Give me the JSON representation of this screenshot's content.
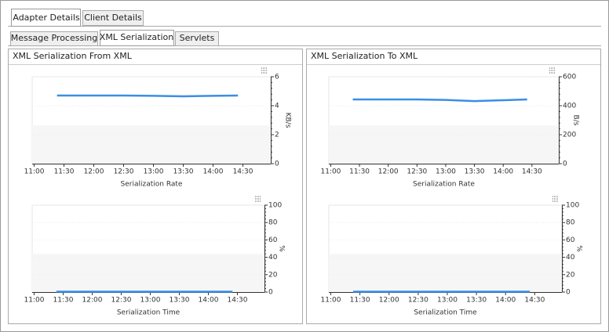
{
  "tabs": [
    "Adapter Details",
    "Client Details"
  ],
  "subtabs": [
    "Message Processing",
    "XML Serialization",
    "Servlets"
  ],
  "panels": [
    {
      "title": "XML Serialization From XML",
      "charts": [
        {
          "type": "line",
          "xlabel": "Serialization Rate",
          "ylabel": "KB/s",
          "color": "#3a8ee6",
          "x": [
            683,
            720,
            750,
            780,
            810,
            840,
            865
          ],
          "values": [
            4.7,
            4.7,
            4.7,
            4.68,
            4.65,
            4.68,
            4.7
          ],
          "xlim": [
            658,
            898
          ],
          "xticks": [
            {
              "value": 660,
              "label": "11:00"
            },
            {
              "value": 690,
              "label": "11:30"
            },
            {
              "value": 720,
              "label": "12:00"
            },
            {
              "value": 750,
              "label": "12:30"
            },
            {
              "value": 780,
              "label": "13:00"
            },
            {
              "value": 810,
              "label": "13:30"
            },
            {
              "value": 840,
              "label": "14:00"
            },
            {
              "value": 870,
              "label": "14:30"
            }
          ],
          "ylim": [
            0,
            6
          ],
          "yticks": [
            0,
            2,
            4,
            6
          ],
          "grid": true
        },
        {
          "type": "line",
          "xlabel": "Serialization Time",
          "ylabel": "%",
          "color": "#3a8ee6",
          "x": [
            683,
            720,
            750,
            780,
            810,
            840,
            865
          ],
          "values": [
            0.5,
            0.5,
            0.5,
            0.5,
            0.5,
            0.5,
            0.5
          ],
          "xlim": [
            658,
            898
          ],
          "xticks": [
            {
              "value": 660,
              "label": "11:00"
            },
            {
              "value": 690,
              "label": "11:30"
            },
            {
              "value": 720,
              "label": "12:00"
            },
            {
              "value": 750,
              "label": "12:30"
            },
            {
              "value": 780,
              "label": "13:00"
            },
            {
              "value": 810,
              "label": "13:30"
            },
            {
              "value": 840,
              "label": "14:00"
            },
            {
              "value": 870,
              "label": "14:30"
            }
          ],
          "ylim": [
            0,
            100
          ],
          "yticks": [
            0,
            20,
            40,
            60,
            80,
            100
          ],
          "grid": true
        }
      ]
    },
    {
      "title": "XML Serialization To XML",
      "charts": [
        {
          "type": "line",
          "xlabel": "Serialization Rate",
          "ylabel": "B/s",
          "color": "#3a8ee6",
          "x": [
            683,
            720,
            750,
            780,
            810,
            840,
            865
          ],
          "values": [
            443,
            443,
            443,
            440,
            432,
            438,
            443
          ],
          "xlim": [
            658,
            898
          ],
          "xticks": [
            {
              "value": 660,
              "label": "11:00"
            },
            {
              "value": 690,
              "label": "11:30"
            },
            {
              "value": 720,
              "label": "12:00"
            },
            {
              "value": 750,
              "label": "12:30"
            },
            {
              "value": 780,
              "label": "13:00"
            },
            {
              "value": 810,
              "label": "13:30"
            },
            {
              "value": 840,
              "label": "14:00"
            },
            {
              "value": 870,
              "label": "14:30"
            }
          ],
          "ylim": [
            0,
            600
          ],
          "yticks": [
            0,
            200,
            400,
            600
          ],
          "grid": true
        },
        {
          "type": "line",
          "xlabel": "Serialization Time",
          "ylabel": "%",
          "color": "#3a8ee6",
          "x": [
            683,
            720,
            750,
            780,
            810,
            840,
            865
          ],
          "values": [
            0.5,
            0.5,
            0.5,
            0.5,
            0.5,
            0.5,
            0.5
          ],
          "xlim": [
            658,
            898
          ],
          "xticks": [
            {
              "value": 660,
              "label": "11:00"
            },
            {
              "value": 690,
              "label": "11:30"
            },
            {
              "value": 720,
              "label": "12:00"
            },
            {
              "value": 750,
              "label": "12:30"
            },
            {
              "value": 780,
              "label": "13:00"
            },
            {
              "value": 810,
              "label": "13:30"
            },
            {
              "value": 840,
              "label": "14:00"
            },
            {
              "value": 870,
              "label": "14:30"
            }
          ],
          "ylim": [
            0,
            100
          ],
          "yticks": [
            0,
            20,
            40,
            60,
            80,
            100
          ],
          "grid": true
        }
      ]
    }
  ]
}
